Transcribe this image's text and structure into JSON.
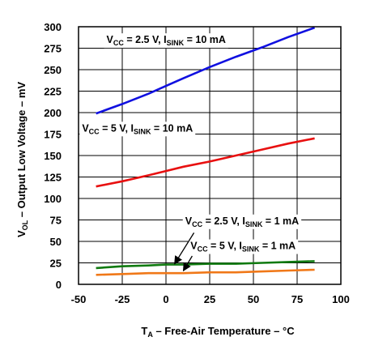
{
  "chart_data": {
    "type": "line",
    "xlabel": {
      "main": "T",
      "sub": "A",
      "rest": " – Free-Air Temperature – °C"
    },
    "ylabel": {
      "main": "V",
      "sub": "OL",
      "rest": " – Output Low Voltage – mV"
    },
    "xlim": [
      -50,
      100
    ],
    "ylim": [
      0,
      300
    ],
    "xticks": [
      "-50",
      "-25",
      "0",
      "25",
      "50",
      "75",
      "100"
    ],
    "yticks": [
      "0",
      "25",
      "50",
      "75",
      "100",
      "125",
      "150",
      "175",
      "200",
      "225",
      "250",
      "275",
      "300"
    ],
    "grid": true,
    "series": [
      {
        "name": "VCC = 2.5 V, ISINK = 10 mA",
        "color": "#1010e0",
        "x": [
          -40,
          -25,
          -10,
          0,
          10,
          25,
          40,
          55,
          70,
          85
        ],
        "y": [
          199,
          210,
          222,
          231,
          240,
          253,
          265,
          276,
          288,
          299
        ]
      },
      {
        "name": "VCC = 5 V, ISINK = 10 mA",
        "color": "#e81010",
        "x": [
          -40,
          -25,
          -10,
          0,
          10,
          25,
          40,
          55,
          70,
          85
        ],
        "y": [
          114,
          120,
          127,
          132,
          137,
          143,
          150,
          157,
          164,
          170
        ]
      },
      {
        "name": "VCC = 2.5 V, ISINK = 1 mA",
        "color": "#107a10",
        "x": [
          -40,
          -25,
          -10,
          0,
          10,
          25,
          40,
          55,
          70,
          85
        ],
        "y": [
          19,
          21,
          22,
          23,
          23,
          24,
          24,
          25,
          26,
          27
        ]
      },
      {
        "name": "VCC = 5 V, ISINK = 1 mA",
        "color": "#f07818",
        "x": [
          -40,
          -25,
          -10,
          0,
          10,
          25,
          40,
          55,
          70,
          85
        ],
        "y": [
          11,
          12,
          13,
          13,
          13,
          14,
          14,
          15,
          16,
          17
        ]
      }
    ],
    "annotations": [
      {
        "v": "V",
        "vsub": "CC",
        "mid": " = 2.5 V, I",
        "isub": "SINK",
        "end": " = 10 mA",
        "x": -34,
        "y": 281
      },
      {
        "v": "V",
        "vsub": "CC",
        "mid": " = 5 V, I",
        "isub": "SINK",
        "end": " = 10 mA",
        "x": -48,
        "y": 178
      },
      {
        "v": "V",
        "vsub": "CC",
        "mid": " = 2.5 V, I",
        "isub": "SINK",
        "end": " = 1 mA",
        "x": 11,
        "y": 70
      },
      {
        "v": "V",
        "vsub": "CC",
        "mid": " = 5 V, I",
        "isub": "SINK",
        "end": " = 1 mA",
        "x": 14,
        "y": 41
      }
    ]
  }
}
